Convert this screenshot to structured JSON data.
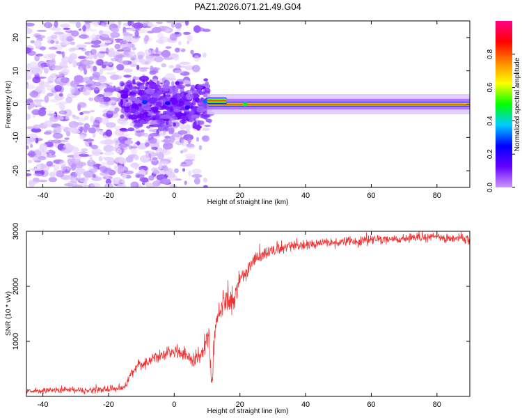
{
  "title": "PAZ1.2026.071.21.49.G04",
  "chart_data": [
    {
      "type": "heatmap",
      "xlabel": "Height of straight line (km)",
      "ylabel": "Frequency (Hz)",
      "xlim": [
        -45,
        90
      ],
      "ylim": [
        -25,
        25
      ],
      "x_ticks": [
        -40,
        -20,
        0,
        20,
        40,
        60,
        80
      ],
      "y_ticks": [
        -20,
        -10,
        0,
        10,
        20
      ],
      "colorbar": {
        "label": "Normalized spectral amplitude",
        "range": [
          0,
          1
        ],
        "ticks": [
          0.0,
          0.2,
          0.4,
          0.6,
          0.8
        ],
        "colors": [
          "#cc99ff",
          "#6600ff",
          "#0000ff",
          "#00ccff",
          "#00ff00",
          "#ffff00",
          "#ff8800",
          "#ff0000",
          "#ff0088"
        ]
      },
      "features": {
        "noise_region_x": [
          -45,
          10
        ],
        "noise_band_y": [
          -25,
          25
        ],
        "core_region_x": [
          -16,
          11
        ],
        "core_band_y": [
          -8,
          8
        ],
        "carrier_x": [
          10,
          90
        ],
        "carrier_y": [
          0.5,
          0
        ],
        "carrier_halo_y": 1.6
      }
    },
    {
      "type": "line",
      "xlabel": "Height of straight line (km)",
      "ylabel": "SNR (10 * v/v)",
      "xlim": [
        -45,
        90
      ],
      "ylim": [
        0,
        3000
      ],
      "x_ticks": [
        -40,
        -20,
        0,
        20,
        40,
        60,
        80
      ],
      "y_ticks": [
        1000,
        2000,
        3000
      ],
      "color": "#ee3333",
      "profile": {
        "x": [
          -45,
          -20,
          -15,
          -13,
          -10,
          -5,
          0,
          3,
          6,
          9,
          10.5,
          11.5,
          12,
          13,
          15,
          18,
          20,
          22,
          24,
          26,
          30,
          35,
          40,
          50,
          60,
          70,
          80,
          90
        ],
        "y": [
          100,
          130,
          170,
          450,
          580,
          720,
          850,
          760,
          650,
          880,
          1050,
          150,
          900,
          1400,
          1800,
          1750,
          2150,
          2250,
          2450,
          2550,
          2650,
          2720,
          2760,
          2800,
          2840,
          2880,
          2900,
          2850
        ]
      },
      "noise_amplitude": [
        [
          -45,
          45
        ],
        [
          -15,
          60
        ],
        [
          -10,
          110
        ],
        [
          0,
          120
        ],
        [
          10,
          150
        ],
        [
          12,
          220
        ],
        [
          20,
          220
        ],
        [
          26,
          130
        ],
        [
          35,
          90
        ],
        [
          90,
          80
        ]
      ]
    }
  ]
}
